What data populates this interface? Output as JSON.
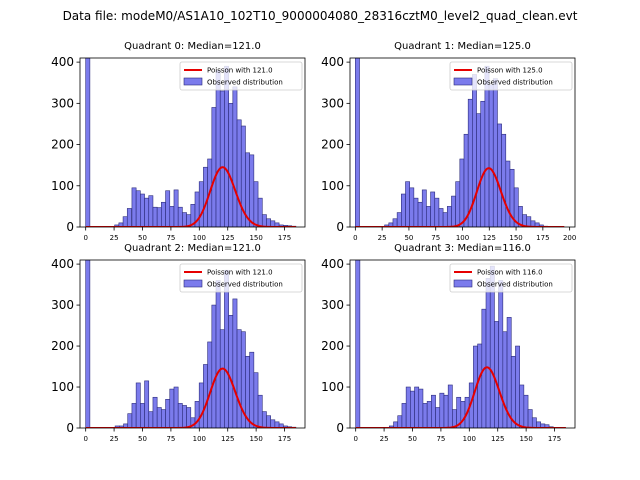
{
  "figure": {
    "suptitle": "Data file: modeM0/AS1A10_102T10_9000004080_28316cztM0_level2_quad_clean.evt"
  },
  "chart_data": [
    {
      "type": "bar",
      "title": "Quadrant 0: Median=121.0",
      "xlim": [
        -5,
        193
      ],
      "ylim": [
        0,
        410
      ],
      "xticks": [
        0,
        25,
        50,
        75,
        100,
        125,
        150,
        175
      ],
      "yticks": [
        0,
        100,
        200,
        300,
        400
      ],
      "bin_width": 3.7,
      "bins_left": [
        0,
        40.7,
        44.4,
        48.1,
        51.8,
        55.5,
        59.2,
        62.9,
        66.6,
        70.3,
        74,
        77.7,
        81.4,
        85.1,
        88.8,
        92.5,
        96.2,
        99.9,
        103.6,
        107.3,
        111,
        114.7,
        118.4,
        122.1,
        125.8,
        129.5,
        133.2,
        136.9,
        140.6,
        144.3,
        148,
        151.7,
        155.4,
        159.1,
        162.8,
        166.5,
        170.2,
        173.9,
        177.6,
        181.3
      ],
      "counts": [
        410,
        95,
        88,
        80,
        70,
        76,
        48,
        47,
        60,
        88,
        50,
        90,
        48,
        35,
        30,
        55,
        85,
        110,
        145,
        165,
        290,
        380,
        330,
        390,
        300,
        340,
        260,
        245,
        180,
        175,
        110,
        70,
        30,
        20,
        15,
        10,
        5,
        4,
        3,
        2
      ],
      "poisson_mean": 121.0,
      "poisson_scale": 4000,
      "poisson_range": [
        0,
        185
      ],
      "legend": [
        "Poisson with 121.0",
        "Observed distribution"
      ],
      "extra_bins_left": [
        25.5,
        29.2,
        32.9,
        36.6
      ],
      "extra_counts": [
        5,
        10,
        25,
        45
      ]
    },
    {
      "type": "bar",
      "title": "Quadrant 1: Median=125.0",
      "xlim": [
        -5,
        205
      ],
      "ylim": [
        0,
        410
      ],
      "xticks": [
        0,
        25,
        50,
        75,
        100,
        125,
        150,
        175,
        200
      ],
      "yticks": [
        0,
        100,
        200,
        300,
        400
      ],
      "bin_width": 3.9,
      "bins_left": [
        0,
        27.3,
        31.2,
        35.1,
        39,
        42.9,
        46.8,
        50.7,
        54.6,
        58.5,
        62.4,
        66.3,
        70.2,
        74.1,
        78,
        81.9,
        85.8,
        89.7,
        93.6,
        97.5,
        101.4,
        105.3,
        109.2,
        113.1,
        117,
        120.9,
        124.8,
        128.7,
        132.6,
        136.5,
        140.4,
        144.3,
        148.2,
        152.1,
        156,
        159.9,
        163.8,
        167.7,
        171.6,
        175.5
      ],
      "counts": [
        410,
        5,
        10,
        20,
        35,
        80,
        110,
        95,
        70,
        60,
        90,
        50,
        85,
        70,
        45,
        35,
        50,
        75,
        110,
        165,
        225,
        310,
        370,
        275,
        305,
        390,
        345,
        360,
        250,
        225,
        160,
        140,
        95,
        50,
        30,
        25,
        15,
        10,
        5,
        2
      ],
      "poisson_mean": 125.0,
      "poisson_scale": 4000,
      "poisson_range": [
        0,
        195
      ],
      "legend": [
        "Poisson with 125.0",
        "Observed distribution"
      ]
    },
    {
      "type": "bar",
      "title": "Quadrant 2: Median=121.0",
      "xlim": [
        -5,
        193
      ],
      "ylim": [
        0,
        410
      ],
      "xticks": [
        0,
        25,
        50,
        75,
        100,
        125,
        150,
        175
      ],
      "yticks": [
        0,
        100,
        200,
        300,
        400
      ],
      "bin_width": 3.7,
      "bins_left": [
        0,
        25.9,
        29.6,
        33.3,
        37,
        40.7,
        44.4,
        48.1,
        51.8,
        55.5,
        59.2,
        62.9,
        66.6,
        70.3,
        74,
        77.7,
        81.4,
        85.1,
        88.8,
        92.5,
        96.2,
        99.9,
        103.6,
        107.3,
        111,
        114.7,
        118.4,
        122.1,
        125.8,
        129.5,
        133.2,
        136.9,
        140.6,
        144.3,
        148,
        151.7,
        155.4,
        159.1,
        162.8,
        166.5,
        170.2,
        173.9,
        177.6,
        181.3
      ],
      "counts": [
        410,
        5,
        5,
        10,
        35,
        60,
        110,
        60,
        115,
        40,
        75,
        50,
        45,
        70,
        95,
        100,
        60,
        55,
        50,
        25,
        65,
        110,
        155,
        210,
        300,
        360,
        240,
        385,
        275,
        315,
        240,
        235,
        175,
        185,
        135,
        80,
        40,
        30,
        20,
        15,
        10,
        5,
        3,
        2
      ],
      "poisson_mean": 121.0,
      "poisson_scale": 4000,
      "poisson_range": [
        0,
        185
      ],
      "legend": [
        "Poisson with 121.0",
        "Observed distribution"
      ]
    },
    {
      "type": "bar",
      "title": "Quadrant 3: Median=116.0",
      "xlim": [
        -5,
        193
      ],
      "ylim": [
        0,
        410
      ],
      "xticks": [
        0,
        25,
        50,
        75,
        100,
        125,
        150,
        175
      ],
      "yticks": [
        0,
        100,
        200,
        300,
        400
      ],
      "bin_width": 3.7,
      "bins_left": [
        0,
        29.6,
        33.3,
        37,
        40.7,
        44.4,
        48.1,
        51.8,
        55.5,
        59.2,
        62.9,
        66.6,
        70.3,
        74,
        77.7,
        81.4,
        85.1,
        88.8,
        92.5,
        96.2,
        99.9,
        103.6,
        107.3,
        111,
        114.7,
        118.4,
        122.1,
        125.8,
        129.5,
        133.2,
        136.9,
        140.6,
        144.3,
        148,
        151.7,
        155.4,
        159.1,
        162.8,
        166.5,
        170.2
      ],
      "counts": [
        410,
        5,
        15,
        30,
        60,
        100,
        90,
        100,
        95,
        60,
        65,
        80,
        50,
        85,
        80,
        105,
        45,
        75,
        65,
        75,
        110,
        200,
        205,
        290,
        365,
        395,
        260,
        360,
        235,
        270,
        175,
        200,
        105,
        80,
        45,
        25,
        15,
        10,
        8,
        3
      ],
      "poisson_mean": 116.0,
      "poisson_scale": 4000,
      "poisson_range": [
        0,
        185
      ],
      "legend": [
        "Poisson with 116.0",
        "Observed distribution"
      ]
    }
  ],
  "colors": {
    "bar_fill": "#7b7bec",
    "bar_edge": "#2b2b7a",
    "poisson_line": "#e60000",
    "axis": "#000000",
    "legend_edge": "#cccccc"
  }
}
